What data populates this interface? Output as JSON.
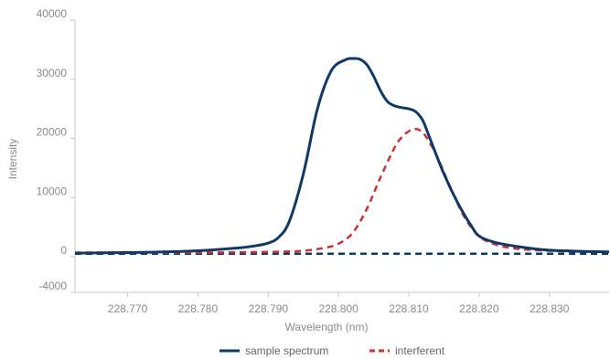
{
  "chart_data": {
    "type": "line",
    "title": "",
    "xlabel": "Wavelength (nm)",
    "ylabel": "Intensity",
    "xlim": [
      228.7625,
      228.8385
    ],
    "ylim": [
      -4000,
      40000
    ],
    "x_ticks": [
      228.77,
      228.78,
      228.79,
      228.8,
      228.81,
      228.82,
      228.83
    ],
    "x_tick_labels": [
      "228.770",
      "228.780",
      "228.790",
      "228.800",
      "228.810",
      "228.820",
      "228.830"
    ],
    "y_ticks": [
      40000,
      30000,
      20000,
      10000,
      0,
      -4000
    ],
    "y_tick_labels": [
      "40000",
      "30000",
      "20000",
      "10000",
      "0",
      "-4000"
    ],
    "grid": false,
    "legend_position": "bottom-center",
    "series": [
      {
        "name": "sample spectrum",
        "color": "#0d3a66",
        "style": "solid",
        "x": [
          228.7625,
          228.77,
          228.775,
          228.78,
          228.785,
          228.788,
          228.79,
          228.7915,
          228.793,
          228.795,
          228.797,
          228.799,
          228.801,
          228.802,
          228.803,
          228.804,
          228.805,
          228.806,
          228.807,
          228.808,
          228.809,
          228.81,
          228.811,
          228.812,
          228.813,
          228.815,
          228.817,
          228.819,
          228.82,
          228.822,
          228.825,
          228.83,
          228.8385
        ],
        "y": [
          600,
          700,
          800,
          1000,
          1400,
          1800,
          2300,
          3300,
          6000,
          14000,
          25000,
          31500,
          33300,
          33500,
          33400,
          32500,
          30500,
          28000,
          26200,
          25500,
          25200,
          25000,
          24500,
          23000,
          20000,
          14000,
          9000,
          5000,
          3500,
          2500,
          1800,
          1100,
          800
        ]
      },
      {
        "name": "interferent",
        "color": "#d32f2f",
        "style": "dashed",
        "x": [
          228.7625,
          228.77,
          228.78,
          228.79,
          228.795,
          228.798,
          228.8,
          228.802,
          228.804,
          228.806,
          228.808,
          228.809,
          228.81,
          228.811,
          228.812,
          228.813,
          228.814,
          228.816,
          228.818,
          228.82,
          228.822,
          228.825,
          228.83,
          228.8385
        ],
        "y": [
          700,
          700,
          700,
          800,
          1000,
          1500,
          2200,
          4000,
          8000,
          13500,
          18500,
          20200,
          21200,
          21600,
          21000,
          19200,
          17000,
          11500,
          6500,
          3500,
          2200,
          1400,
          1000,
          800
        ]
      },
      {
        "name": "",
        "color": "#0d3a66",
        "style": "dashed",
        "x": [
          228.7625,
          228.8385
        ],
        "y": [
          500,
          500
        ]
      }
    ]
  }
}
